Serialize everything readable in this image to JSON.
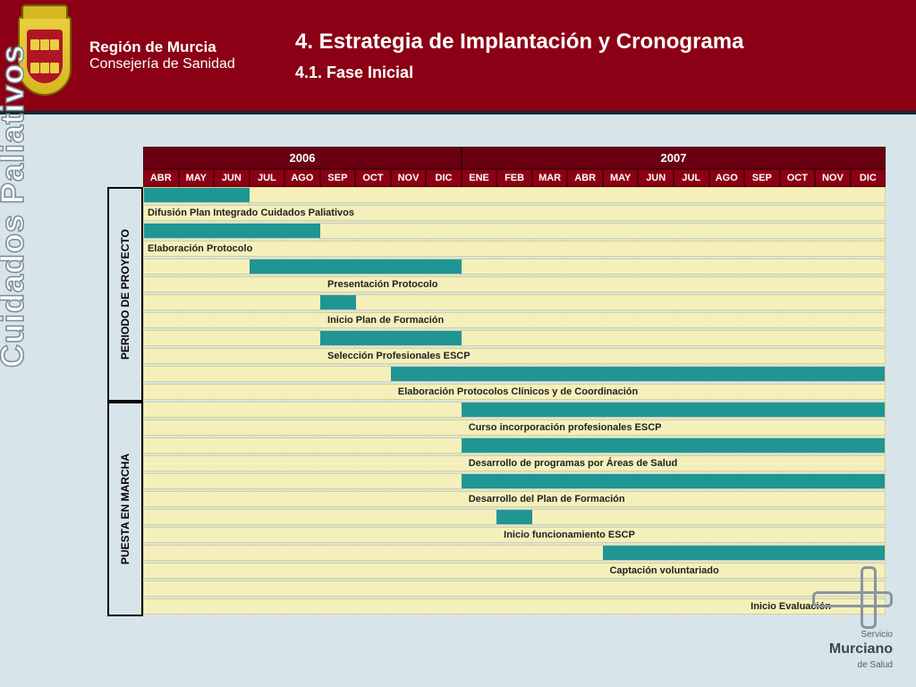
{
  "header": {
    "region": "Región de Murcia",
    "consejeria": "Consejería de Sanidad",
    "title": "4. Estrategia de Implantación y Cronograma",
    "subtitle": "4.1. Fase Inicial"
  },
  "side_label": "Cuidados Paliativos",
  "colors": {
    "header_bg": "#8b0015",
    "year_bg": "#6a0012",
    "month_bg": "#8b0015",
    "page_bg": "#d7e5ea",
    "row_bg": "#f5f0bb",
    "bar_color": "#1f9694"
  },
  "gantt": {
    "years": [
      {
        "label": "2006",
        "span": 9
      },
      {
        "label": "2007",
        "span": 12
      }
    ],
    "months": [
      "ABR",
      "MAY",
      "JUN",
      "JUL",
      "AGO",
      "SEP",
      "OCT",
      "NOV",
      "DIC",
      "ENE",
      "FEB",
      "MAR",
      "ABR",
      "MAY",
      "JUN",
      "JUL",
      "AGO",
      "SEP",
      "OCT",
      "NOV",
      "DIC"
    ],
    "total_months": 21,
    "phases": [
      {
        "label": "PERIODO DE PROYECTO",
        "tasks": [
          {
            "label": "Difusión Plan Integrado Cuidados Paliativos",
            "bar_start": 0,
            "bar_span": 3,
            "label_offset": 0.1
          },
          {
            "label": "Elaboración Protocolo",
            "bar_start": 0,
            "bar_span": 5,
            "label_offset": 0.1
          },
          {
            "label": "Presentación Protocolo",
            "bar_start": 3,
            "bar_span": 6,
            "label_offset": 5.2
          },
          {
            "label": "Inicio Plan de Formación",
            "bar_start": 5,
            "bar_span": 1,
            "label_offset": 5.2
          },
          {
            "label": "Selección Profesionales ESCP",
            "bar_start": 5,
            "bar_span": 4,
            "label_offset": 5.2
          },
          {
            "label": "Elaboración Protocolos Clínicos y de Coordinación",
            "bar_start": 7,
            "bar_span": 14,
            "label_offset": 7.2
          }
        ]
      },
      {
        "label": "PUESTA EN MARCHA",
        "tasks": [
          {
            "label": "Curso incorporación profesionales ESCP",
            "bar_start": 9,
            "bar_span": 12,
            "label_offset": 9.2
          },
          {
            "label": "Desarrollo de programas por Áreas de Salud",
            "bar_start": 9,
            "bar_span": 12,
            "label_offset": 9.2
          },
          {
            "label": "Desarrollo del Plan de Formación",
            "bar_start": 9,
            "bar_span": 12,
            "label_offset": 9.2
          },
          {
            "label": "Inicio funcionamiento ESCP",
            "bar_start": 10,
            "bar_span": 1,
            "label_offset": 10.2
          },
          {
            "label": "Captación voluntariado",
            "bar_start": 13,
            "bar_span": 8,
            "label_offset": 13.2
          },
          {
            "label": "Inicio Evaluación",
            "bar_start": 17,
            "bar_span": 0,
            "label_offset": 17.2
          }
        ]
      }
    ]
  },
  "logo": {
    "line1": "Servicio",
    "brand": "Murciano",
    "line2": "de Salud"
  }
}
